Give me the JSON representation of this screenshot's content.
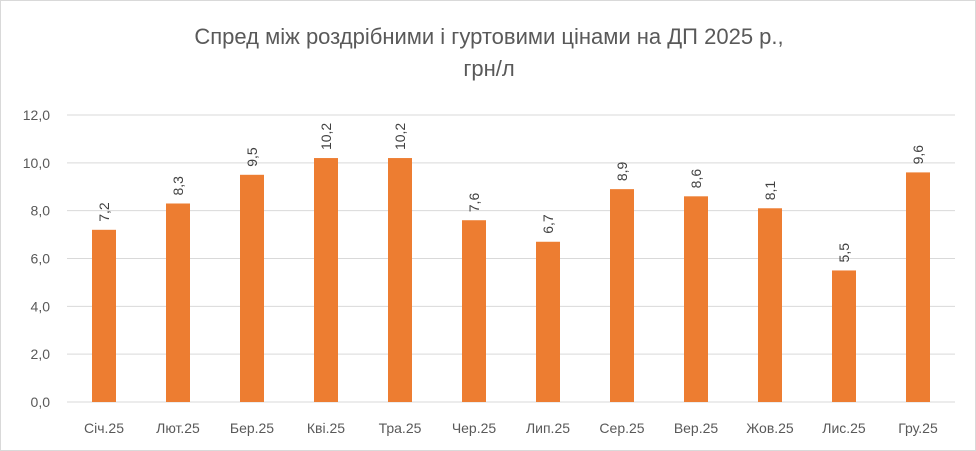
{
  "chart_data": {
    "type": "bar",
    "title_line1": "Спред між роздрібними і гуртовими цінами на ДП 2025 р.,",
    "title_line2": "грн/л",
    "xlabel": "",
    "ylabel": "",
    "categories": [
      "Січ.25",
      "Лют.25",
      "Бер.25",
      "Кві.25",
      "Тра.25",
      "Чер.25",
      "Лип.25",
      "Сер.25",
      "Вер.25",
      "Жов.25",
      "Лис.25",
      "Гру.25"
    ],
    "values": [
      7.2,
      8.3,
      9.5,
      10.2,
      10.2,
      7.6,
      6.7,
      8.9,
      8.6,
      8.1,
      5.5,
      9.6
    ],
    "value_labels": [
      "7,2",
      "8,3",
      "9,5",
      "10,2",
      "10,2",
      "7,6",
      "6,7",
      "8,9",
      "8,6",
      "8,1",
      "5,5",
      "9,6"
    ],
    "y_ticks": [
      0,
      2,
      4,
      6,
      8,
      10,
      12
    ],
    "y_tick_labels": [
      "0,0",
      "2,0",
      "4,0",
      "6,0",
      "8,0",
      "10,0",
      "12,0"
    ],
    "ylim": [
      0,
      12
    ],
    "grid": true,
    "legend": "none",
    "bar_color": "#ED7D31",
    "grid_color": "#D9D9D9"
  }
}
